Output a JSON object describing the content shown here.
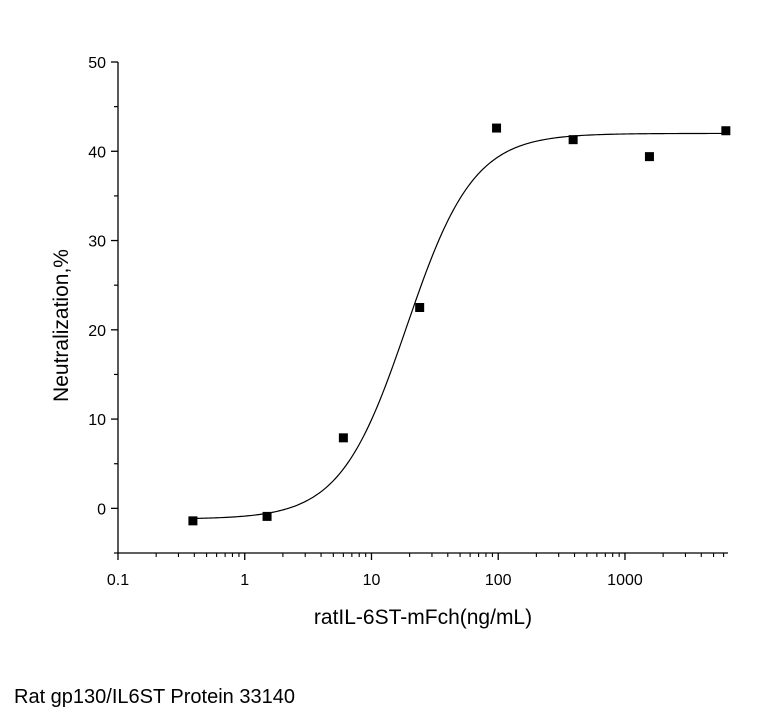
{
  "chart_data": {
    "type": "scatter",
    "title": "",
    "xlabel": "ratIL-6ST-mFch(ng/mL)",
    "ylabel": "Neutralization,%",
    "x_scale": "log",
    "xlim": [
      0.1,
      6500
    ],
    "ylim": [
      -5,
      50
    ],
    "x_ticks": [
      0.1,
      1,
      10,
      100,
      1000
    ],
    "x_tick_labels": [
      "0.1",
      "1",
      "10",
      "100",
      "1000"
    ],
    "y_ticks": [
      0,
      10,
      20,
      30,
      40,
      50
    ],
    "y_tick_labels": [
      "0",
      "10",
      "20",
      "30",
      "40",
      "50"
    ],
    "grid": false,
    "points": [
      {
        "x": 0.39,
        "y": -1.4
      },
      {
        "x": 1.5,
        "y": -0.9
      },
      {
        "x": 6,
        "y": 7.9
      },
      {
        "x": 24,
        "y": 22.5
      },
      {
        "x": 97,
        "y": 42.6
      },
      {
        "x": 390,
        "y": 41.3
      },
      {
        "x": 1560,
        "y": 39.4
      },
      {
        "x": 6250,
        "y": 42.3
      }
    ],
    "fit_curve": {
      "model": "4PL",
      "bottom": -1.2,
      "top": 42.0,
      "ec50": 19,
      "hill": 1.65
    }
  },
  "caption": "Rat gp130/IL6ST Protein 33140"
}
